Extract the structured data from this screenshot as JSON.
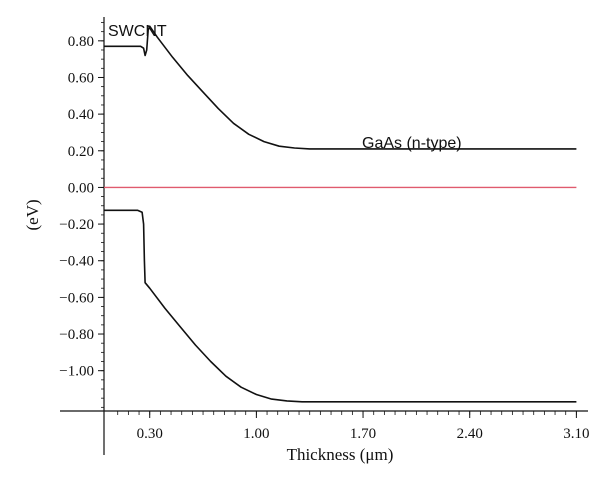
{
  "chart_data": {
    "type": "line",
    "xlabel": "Thickness (μm)",
    "ylabel": "(eV)",
    "x_ticks": [
      0.3,
      1.0,
      1.7,
      2.4,
      3.1
    ],
    "x_tick_labels": [
      "0.30",
      "1.00",
      "1.70",
      "2.40",
      "3.10"
    ],
    "y_ticks": [
      0.8,
      0.6,
      0.4,
      0.2,
      0.0,
      -0.2,
      -0.4,
      -0.6,
      -0.8,
      -1.0
    ],
    "y_tick_labels": [
      "0.80",
      "0.60",
      "0.40",
      "0.20",
      "0.00",
      "−0.20",
      "−0.40",
      "−0.60",
      "−0.80",
      "−1.00"
    ],
    "xlim": [
      0.0,
      3.15
    ],
    "ylim": [
      -1.22,
      0.93
    ],
    "grid": false,
    "annotations": [
      {
        "text": "SWCNT",
        "x": 0.05,
        "y": 0.89
      },
      {
        "text": "GaAs (n-type)",
        "x": 1.75,
        "y": 0.28
      }
    ],
    "series": [
      {
        "color": "#111111",
        "points": [
          [
            0.0,
            0.77
          ],
          [
            0.24,
            0.77
          ],
          [
            0.26,
            0.76
          ],
          [
            0.27,
            0.72
          ],
          [
            0.28,
            0.75
          ],
          [
            0.29,
            0.86
          ],
          [
            0.3,
            0.88
          ],
          [
            0.35,
            0.82
          ],
          [
            0.45,
            0.71
          ],
          [
            0.55,
            0.61
          ],
          [
            0.65,
            0.52
          ],
          [
            0.75,
            0.43
          ],
          [
            0.85,
            0.35
          ],
          [
            0.95,
            0.29
          ],
          [
            1.05,
            0.25
          ],
          [
            1.15,
            0.225
          ],
          [
            1.25,
            0.215
          ],
          [
            1.35,
            0.21
          ],
          [
            3.1,
            0.21
          ]
        ]
      },
      {
        "color": "#111111",
        "points": [
          [
            0.0,
            -0.125
          ],
          [
            0.22,
            -0.125
          ],
          [
            0.25,
            -0.135
          ],
          [
            0.26,
            -0.2
          ],
          [
            0.265,
            -0.4
          ],
          [
            0.27,
            -0.52
          ],
          [
            0.3,
            -0.55
          ],
          [
            0.4,
            -0.66
          ],
          [
            0.5,
            -0.76
          ],
          [
            0.6,
            -0.86
          ],
          [
            0.7,
            -0.95
          ],
          [
            0.8,
            -1.03
          ],
          [
            0.9,
            -1.09
          ],
          [
            1.0,
            -1.13
          ],
          [
            1.1,
            -1.155
          ],
          [
            1.2,
            -1.165
          ],
          [
            1.3,
            -1.17
          ],
          [
            3.1,
            -1.17
          ]
        ]
      },
      {
        "color": "#e05a6e",
        "points": [
          [
            0.0,
            0.0
          ],
          [
            3.1,
            0.0
          ]
        ]
      }
    ]
  }
}
